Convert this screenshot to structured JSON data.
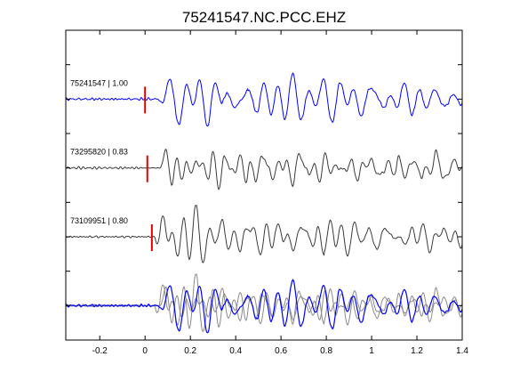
{
  "chart_data": {
    "type": "line",
    "title": "75241547.NC.PCC.EHZ",
    "xlabel": "",
    "ylabel": "",
    "xlim": [
      -0.35,
      1.4
    ],
    "x_ticks": [
      -0.2,
      0,
      0.2,
      0.4,
      0.6,
      0.8,
      1,
      1.2,
      1.4
    ],
    "x_tick_labels": [
      "-0.2",
      "0",
      "0.2",
      "0.4",
      "0.6",
      "0.8",
      "1",
      "1.2",
      "1.4"
    ],
    "y_ticks": [
      1,
      2,
      3,
      4,
      5,
      6,
      7,
      8
    ],
    "grid": false,
    "legend": "none",
    "colors": {
      "master": "#0000ff",
      "neighbor": "#3a3a3a",
      "neighbor_overlay": "#8a8a8a",
      "pick": "#dd0000"
    },
    "series": [
      {
        "name": "75241547 | 1.00",
        "label": "75241547 | 1.00",
        "color": "#0000ff",
        "baseline": 7,
        "pick_time": 0.0
      },
      {
        "name": "73295820 | 0.83",
        "label": "73295820 | 0.83",
        "color": "#3a3a3a",
        "baseline": 5,
        "pick_time": 0.01
      },
      {
        "name": "73109951 | 0.80",
        "label": "73109951 | 0.80",
        "color": "#3a3a3a",
        "baseline": 3,
        "pick_time": 0.03
      }
    ],
    "overlay": {
      "baseline": 1,
      "series_order": [
        "neighbors",
        "master"
      ]
    }
  }
}
